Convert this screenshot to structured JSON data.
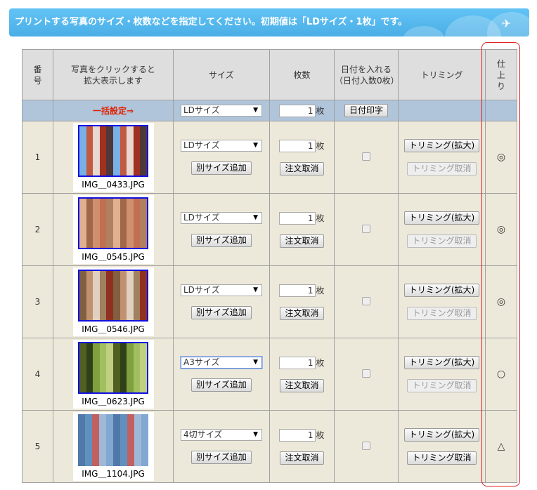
{
  "banner": {
    "text": "プリントする写真のサイズ・枚数などを指定してください。初期値は「LDサイズ・1枚」です。"
  },
  "headers": [
    "番\n号",
    "写真をクリックすると\n拡大表示します",
    "サイズ",
    "枚数",
    "日付を入れる\n（日付入数0枚）",
    "トリミング",
    "仕\n上\nり"
  ],
  "bulk": {
    "label": "一括設定⇒",
    "size": "LDサイズ",
    "qty": "1",
    "unit": "枚",
    "date_button": "日付印字"
  },
  "buttons": {
    "add_size": "別サイズ追加",
    "cancel_order": "注文取消",
    "trim": "トリミング(拡大)",
    "trim_cancel": "トリミング取消"
  },
  "rows": [
    {
      "no": "1",
      "file": "IMG＿0433.JPG",
      "size": "LDサイズ",
      "qty": "1",
      "unit": "枚",
      "finish": "◎",
      "trim_cancel_enabled": false,
      "palette": [
        "#7ab0e8",
        "#a03020",
        "#c05a40",
        "#503838",
        "#e8d8d0"
      ]
    },
    {
      "no": "2",
      "file": "IMG＿0545.JPG",
      "size": "LDサイズ",
      "qty": "1",
      "unit": "枚",
      "finish": "◎",
      "trim_cancel_enabled": false,
      "palette": [
        "#b08060",
        "#d09070",
        "#e0b090",
        "#c07050",
        "#a06848"
      ]
    },
    {
      "no": "3",
      "file": "IMG＿0546.JPG",
      "size": "LDサイズ",
      "qty": "1",
      "unit": "枚",
      "finish": "◎",
      "trim_cancel_enabled": false,
      "palette": [
        "#a08060",
        "#c09070",
        "#903020",
        "#e0d0c0",
        "#806040"
      ]
    },
    {
      "no": "4",
      "file": "IMG＿0623.JPG",
      "size": "A3サイズ",
      "qty": "1",
      "unit": "枚",
      "finish": "○",
      "trim_cancel_enabled": false,
      "palette": [
        "#80a040",
        "#506020",
        "#a0c060",
        "#304018",
        "#c0d080"
      ]
    },
    {
      "no": "5",
      "file": "IMG＿1104.JPG",
      "size": "4切サイズ",
      "qty": "1",
      "unit": "枚",
      "finish": "△",
      "trim_cancel_enabled": true,
      "palette": [
        "#6090c0",
        "#80a8d0",
        "#c06060",
        "#5078a8",
        "#a0b8d8"
      ]
    }
  ]
}
